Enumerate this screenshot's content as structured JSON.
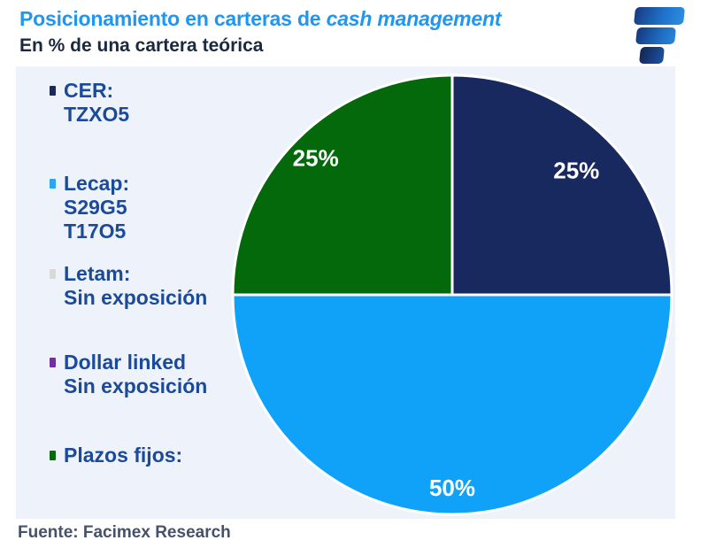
{
  "header": {
    "title_regular": "Posicionamiento en carteras de ",
    "title_italic": "cash management",
    "subtitle": "En % de una cartera teórica",
    "title_color": "#1F96F0"
  },
  "logo": {
    "icon": "facimex-logo",
    "colors": [
      "#173a80",
      "#1d71c8",
      "#122452"
    ]
  },
  "legend": {
    "items": [
      {
        "bullet_color": "#17295E",
        "lines": [
          "CER:",
          "TZXO5"
        ]
      },
      {
        "bullet_color": "#2BA7F2",
        "lines": [
          "Lecap:",
          "S29G5",
          "T17O5"
        ]
      },
      {
        "bullet_color": "#D9D9D9",
        "lines": [
          "Letam:",
          "Sin exposición"
        ]
      },
      {
        "bullet_color": "#7030A0",
        "lines": [
          "Dollar linked",
          "Sin exposición"
        ]
      },
      {
        "bullet_color": "#076B0D",
        "lines": [
          "Plazos fijos:"
        ]
      }
    ]
  },
  "chart_data": {
    "type": "pie",
    "title": "Posicionamiento en carteras de cash management",
    "subtitle": "En % de una cartera teórica",
    "start_angle_deg": 0,
    "direction": "clockwise",
    "legend_position": "left",
    "separator_color": "#FFFFFF",
    "background_color": "#EEF3FB",
    "slices": [
      {
        "label": "CER",
        "value": 25,
        "display_label": "25%",
        "color": "#17295E",
        "label_radius_factor": 0.8
      },
      {
        "label": "Lecap",
        "value": 50,
        "display_label": "50%",
        "color": "#10A2F9",
        "label_radius_factor": 0.88
      },
      {
        "label": "Plazos fijos",
        "value": 25,
        "display_label": "25%",
        "color": "#03690B",
        "label_radius_factor": 0.88
      }
    ]
  },
  "footer": {
    "source": "Fuente: Facimex Research"
  }
}
